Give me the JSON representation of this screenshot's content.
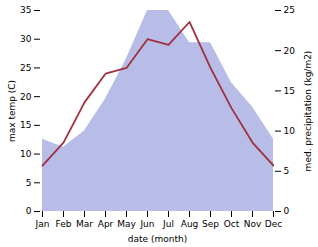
{
  "chart_data": {
    "type": "line",
    "xlabel": "date (month)",
    "ylabel": "max temp (C)",
    "y2label": "med. precipitation (kg/m2)",
    "categories": [
      "Jan",
      "Feb",
      "Mar",
      "Apr",
      "May",
      "Jun",
      "Jul",
      "Aug",
      "Sep",
      "Oct",
      "Nov",
      "Dec"
    ],
    "series": [
      {
        "type": "area",
        "axis": "y2",
        "color": "#b8bde8",
        "values": [
          9,
          8,
          10,
          14,
          19,
          25,
          25,
          21,
          21,
          16,
          13,
          9
        ]
      },
      {
        "type": "line",
        "color": "#a03040",
        "values": [
          8,
          12,
          19,
          24,
          25,
          30,
          29,
          33,
          25,
          18,
          12,
          8
        ]
      }
    ],
    "ylim": [
      0,
      35
    ],
    "yticks": [
      0,
      5,
      10,
      15,
      20,
      25,
      30,
      35
    ],
    "y2lim": [
      0,
      25
    ],
    "y2ticks": [
      0,
      5,
      10,
      15,
      20,
      25
    ],
    "grid": false
  }
}
